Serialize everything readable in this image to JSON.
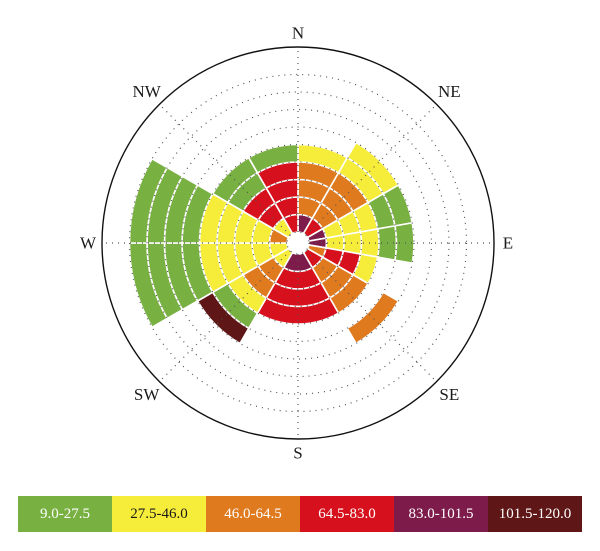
{
  "chart_data": {
    "type": "polar-stacked-bar",
    "title": "",
    "directions": [
      "N",
      "NE",
      "E",
      "SE",
      "S",
      "SW",
      "W",
      "NW"
    ],
    "bins": [
      {
        "label": "9.0-27.5",
        "color": "#78b041",
        "text_color": "#ffffff"
      },
      {
        "label": "27.5-46.0",
        "color": "#f6ec3a",
        "text_color": "#1a1a1a"
      },
      {
        "label": "46.0-64.5",
        "color": "#e07a1f",
        "text_color": "#ffffff"
      },
      {
        "label": "64.5-83.0",
        "color": "#d6101c",
        "text_color": "#ffffff"
      },
      {
        "label": "83.0-101.5",
        "color": "#7d1b4a",
        "text_color": "#ffffff"
      },
      {
        "label": "101.5-120.0",
        "color": "#5e1616",
        "text_color": "#ffffff"
      }
    ],
    "rings": 9,
    "sectors": [
      {
        "a0": -60,
        "a1": -30,
        "segments": [
          {
            "bin": 5,
            "from": 0,
            "to": 1
          },
          {
            "bin": 3,
            "from": 1,
            "to": 4
          },
          {
            "bin": 0,
            "from": 4,
            "to": 5
          }
        ]
      },
      {
        "a0": -30,
        "a1": 0,
        "segments": [
          {
            "bin": 4,
            "from": 0,
            "to": 1
          },
          {
            "bin": 3,
            "from": 1,
            "to": 4
          },
          {
            "bin": 0,
            "from": 4,
            "to": 5
          }
        ]
      },
      {
        "a0": 0,
        "a1": 30,
        "segments": [
          {
            "bin": 4,
            "from": 0,
            "to": 1
          },
          {
            "bin": 2,
            "from": 1,
            "to": 4
          },
          {
            "bin": 1,
            "from": 4,
            "to": 5
          }
        ]
      },
      {
        "a0": 30,
        "a1": 60,
        "segments": [
          {
            "bin": 3,
            "from": 0,
            "to": 1
          },
          {
            "bin": 2,
            "from": 1,
            "to": 4
          },
          {
            "bin": 1,
            "from": 4,
            "to": 6
          }
        ]
      },
      {
        "a0": 60,
        "a1": 80,
        "segments": [
          {
            "bin": 4,
            "from": 0,
            "to": 1
          },
          {
            "bin": 1,
            "from": 1,
            "to": 4
          },
          {
            "bin": 0,
            "from": 4,
            "to": 6
          }
        ]
      },
      {
        "a0": 80,
        "a1": 100,
        "segments": [
          {
            "bin": 4,
            "from": 0,
            "to": 1
          },
          {
            "bin": 1,
            "from": 1,
            "to": 4
          },
          {
            "bin": 0,
            "from": 4,
            "to": 6
          }
        ]
      },
      {
        "a0": 100,
        "a1": 120,
        "segments": [
          {
            "bin": 2,
            "from": 0,
            "to": 1
          },
          {
            "bin": 3,
            "from": 1,
            "to": 3
          },
          {
            "bin": 1,
            "from": 3,
            "to": 4
          }
        ]
      },
      {
        "a0": 120,
        "a1": 150,
        "segments": [
          {
            "bin": 3,
            "from": 0,
            "to": 1
          },
          {
            "bin": 2,
            "from": 1,
            "to": 4
          },
          {
            "bin": 2,
            "from": 5,
            "to": 6
          }
        ]
      },
      {
        "a0": 150,
        "a1": 210,
        "segments": [
          {
            "bin": 4,
            "from": 0,
            "to": 1
          },
          {
            "bin": 3,
            "from": 1,
            "to": 4
          }
        ]
      },
      {
        "a0": 210,
        "a1": 240,
        "segments": [
          {
            "bin": 1,
            "from": 0,
            "to": 1
          },
          {
            "bin": 2,
            "from": 1,
            "to": 3
          },
          {
            "bin": 1,
            "from": 3,
            "to": 4
          },
          {
            "bin": 0,
            "from": 4,
            "to": 5
          },
          {
            "bin": 5,
            "from": 5,
            "to": 6
          }
        ]
      },
      {
        "a0": 240,
        "a1": 270,
        "segments": [
          {
            "bin": 1,
            "from": 0,
            "to": 5
          },
          {
            "bin": 0,
            "from": 5,
            "to": 9
          }
        ]
      },
      {
        "a0": 270,
        "a1": 300,
        "segments": [
          {
            "bin": 2,
            "from": 0,
            "to": 1
          },
          {
            "bin": 1,
            "from": 1,
            "to": 5
          },
          {
            "bin": 0,
            "from": 5,
            "to": 9
          }
        ]
      },
      {
        "a0": 300,
        "a1": 330,
        "segments": [
          {
            "bin": 1,
            "from": 0,
            "to": 1
          },
          {
            "bin": 3,
            "from": 1,
            "to": 3
          },
          {
            "bin": 0,
            "from": 3,
            "to": 4
          }
        ]
      },
      {
        "a0": 330,
        "a1": 360,
        "segments": [
          {
            "bin": 3,
            "from": 0,
            "to": 4
          },
          {
            "bin": 0,
            "from": 4,
            "to": 5
          }
        ]
      }
    ]
  }
}
